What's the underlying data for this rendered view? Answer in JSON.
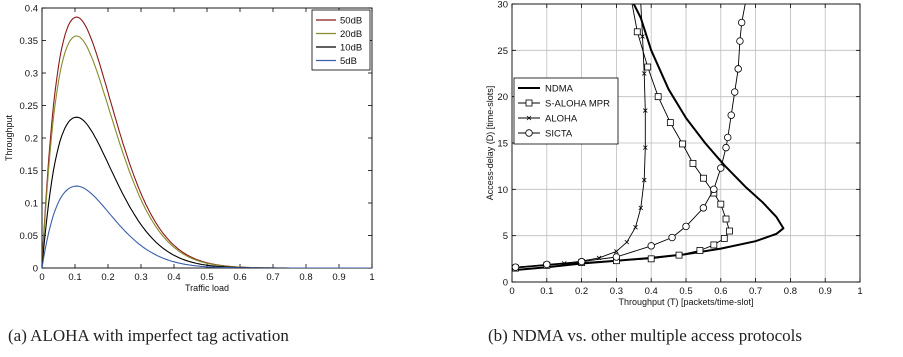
{
  "captions": {
    "a": "(a) ALOHA with imperfect tag activation",
    "b": "(b) NDMA vs. other multiple access protocols"
  },
  "chart_data": [
    {
      "type": "line",
      "title": "",
      "xlabel": "Traffic load",
      "ylabel": "Throughput",
      "xlim": [
        0,
        1
      ],
      "ylim": [
        0,
        0.4
      ],
      "xticks": [
        0,
        0.1,
        0.2,
        0.3,
        0.4,
        0.5,
        0.6,
        0.7,
        0.8,
        0.9,
        1
      ],
      "yticks": [
        0,
        0.05,
        0.1,
        0.15,
        0.2,
        0.25,
        0.3,
        0.35,
        0.4
      ],
      "xtick_labels": [
        "0",
        "0.1",
        "0.2",
        "0.3",
        "0.4",
        "0.5",
        "0.6",
        "0.7",
        "0.8",
        "0.9",
        "1"
      ],
      "ytick_labels": [
        "0",
        "0.05",
        "0.1",
        "0.15",
        "0.2",
        "0.25",
        "0.3",
        "0.35",
        "0.4"
      ],
      "grid": false,
      "legend": "top-right",
      "series": [
        {
          "name": "50dB",
          "color": "#8b1a1a",
          "peak_x": 0.105,
          "peak_y": 0.386,
          "k": 10.7
        },
        {
          "name": "20dB",
          "color": "#8a8a2a",
          "peak_x": 0.105,
          "peak_y": 0.357,
          "k": 10.9
        },
        {
          "name": "10dB",
          "color": "#000000",
          "peak_x": 0.105,
          "peak_y": 0.232,
          "k": 11.5
        },
        {
          "name": "5dB",
          "color": "#3a5fa8",
          "peak_x": 0.105,
          "peak_y": 0.126,
          "k": 12.8
        }
      ]
    },
    {
      "type": "line",
      "title": "",
      "xlabel": "Throughput (T) [packets/time-slot]",
      "ylabel": "Access-delay (D) [time-slots]",
      "xlim": [
        0,
        1
      ],
      "ylim": [
        0,
        30
      ],
      "xticks": [
        0,
        0.1,
        0.2,
        0.3,
        0.4,
        0.5,
        0.6,
        0.7,
        0.8,
        0.9,
        1
      ],
      "yticks": [
        0,
        5,
        10,
        15,
        20,
        25,
        30
      ],
      "xtick_labels": [
        "0",
        "0.1",
        "0.2",
        "0.3",
        "0.4",
        "0.5",
        "0.6",
        "0.7",
        "0.8",
        "0.9",
        "1"
      ],
      "ytick_labels": [
        "0",
        "5",
        "10",
        "15",
        "20",
        "25",
        "30"
      ],
      "grid": true,
      "legend": "center-left",
      "series": [
        {
          "name": "NDMA",
          "marker": "none",
          "bold": true,
          "points": [
            [
              0.01,
              1.3
            ],
            [
              0.1,
              1.6
            ],
            [
              0.2,
              2.0
            ],
            [
              0.3,
              2.3
            ],
            [
              0.4,
              2.6
            ],
            [
              0.5,
              3.0
            ],
            [
              0.6,
              3.6
            ],
            [
              0.7,
              4.4
            ],
            [
              0.76,
              5.2
            ],
            [
              0.78,
              5.8
            ],
            [
              0.76,
              7.0
            ],
            [
              0.72,
              8.6
            ],
            [
              0.67,
              10.3
            ],
            [
              0.61,
              12.6
            ],
            [
              0.555,
              15.0
            ],
            [
              0.5,
              17.7
            ],
            [
              0.45,
              20.8
            ],
            [
              0.4,
              25.0
            ],
            [
              0.37,
              28.5
            ],
            [
              0.35,
              30.0
            ]
          ]
        },
        {
          "name": "S-ALOHA MPR",
          "marker": "square",
          "points": [
            [
              0.01,
              1.5
            ],
            [
              0.1,
              1.8
            ],
            [
              0.2,
              2.1
            ],
            [
              0.3,
              2.3
            ],
            [
              0.4,
              2.5
            ],
            [
              0.48,
              2.9
            ],
            [
              0.54,
              3.4
            ],
            [
              0.58,
              4.0
            ],
            [
              0.61,
              4.7
            ],
            [
              0.625,
              5.5
            ],
            [
              0.615,
              6.8
            ],
            [
              0.6,
              8.4
            ],
            [
              0.58,
              9.6
            ],
            [
              0.55,
              11.2
            ],
            [
              0.52,
              12.8
            ],
            [
              0.49,
              14.9
            ],
            [
              0.455,
              17.2
            ],
            [
              0.42,
              20.0
            ],
            [
              0.39,
              23.2
            ],
            [
              0.36,
              27.0
            ],
            [
              0.345,
              30.0
            ]
          ]
        },
        {
          "name": "ALOHA",
          "marker": "x",
          "points": [
            [
              0.01,
              1.6
            ],
            [
              0.1,
              1.85
            ],
            [
              0.15,
              2.0
            ],
            [
              0.2,
              2.25
            ],
            [
              0.25,
              2.6
            ],
            [
              0.3,
              3.3
            ],
            [
              0.33,
              4.3
            ],
            [
              0.355,
              5.9
            ],
            [
              0.37,
              8.0
            ],
            [
              0.38,
              11.0
            ],
            [
              0.383,
              14.5
            ],
            [
              0.383,
              18.5
            ],
            [
              0.38,
              22.5
            ],
            [
              0.375,
              26.5
            ],
            [
              0.37,
              30.0
            ]
          ]
        },
        {
          "name": "SICTA",
          "marker": "circle",
          "points": [
            [
              0.01,
              1.6
            ],
            [
              0.1,
              1.9
            ],
            [
              0.2,
              2.2
            ],
            [
              0.3,
              2.7
            ],
            [
              0.4,
              3.9
            ],
            [
              0.46,
              4.8
            ],
            [
              0.5,
              6.0
            ],
            [
              0.55,
              8.0
            ],
            [
              0.58,
              10.0
            ],
            [
              0.6,
              12.3
            ],
            [
              0.615,
              14.5
            ],
            [
              0.62,
              15.6
            ],
            [
              0.63,
              18.0
            ],
            [
              0.64,
              20.5
            ],
            [
              0.65,
              23.0
            ],
            [
              0.655,
              26.0
            ],
            [
              0.66,
              28.0
            ],
            [
              0.67,
              30.0
            ]
          ]
        }
      ]
    }
  ]
}
